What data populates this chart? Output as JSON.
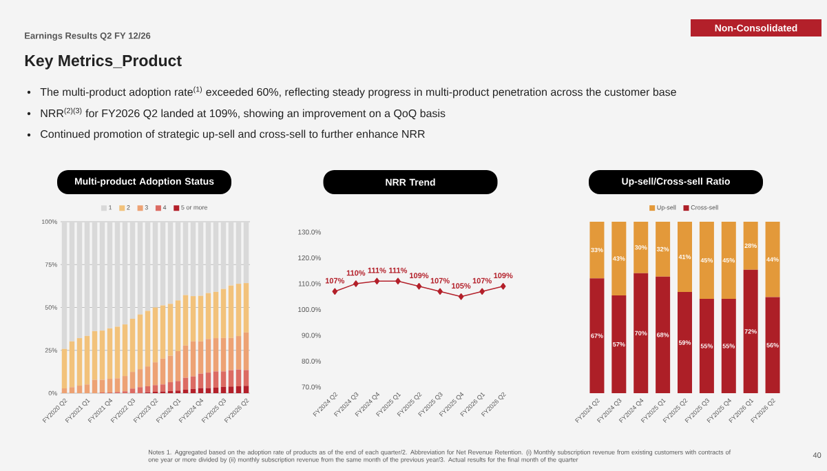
{
  "chart_data": [
    {
      "type": "bar",
      "title": "Multi-product Adoption Status",
      "stacked": true,
      "grid": "y",
      "legend": "top",
      "annotations": [
        "Earnings Results Q2 FY 12/26",
        "Key Metrics_Product",
        "Non-Consolidated",
        "The multi-product adoption rate$^{(1)}$ exceeded 60%, reflecting steady progress in multi-product penetration across the customer base",
        "NRR$^{(2)(3)}$ for FY2026 Q2 landed at 109%, showing an improvement on a QoQ basis",
        "Continued promotion of strategic up-sell and cross-sell to further enhance NRR",
        "Notes 1. Aggregated based on the adoption rate of products as of the end of each quarter/2. Abbreviation for Net Revenue Retention. (i) Monthly subscription revenue from existing customers with contracts of one year or more divided by (ii) monthly subscription revenue from the same month of the previous year/3. Actual results for the final month of the quarter",
        "40"
      ],
      "categories": [
        "FY2020 Q2",
        null,
        null,
        "FY2021 Q1",
        null,
        null,
        "FY2021 Q4",
        null,
        null,
        "FY2022 Q3",
        null,
        null,
        "FY2023 Q2",
        null,
        null,
        "FY2024 Q1",
        null,
        null,
        "FY2024 Q4",
        null,
        null,
        "FY2025 Q3",
        null,
        null,
        "FY2026 Q2"
      ],
      "ylim": [
        0,
        100
      ],
      "yticks": [
        {
          "value": 0,
          "label": "0%"
        },
        {
          "value": 25,
          "label": "25%"
        },
        {
          "value": 50,
          "label": "50%"
        },
        {
          "value": 75,
          "label": "75%"
        },
        {
          "value": 100,
          "label": "100%"
        }
      ],
      "series": [
        {
          "name": "5 or more",
          "color": "#b3202a",
          "values": [
            0,
            0,
            0,
            0,
            0,
            0,
            0,
            0,
            0,
            0,
            0,
            0.5,
            0.8,
            1.0,
            1.2,
            1.5,
            2.0,
            2.5,
            3.0,
            3.0,
            3.2,
            3.7,
            3.9,
            4.0,
            4.3
          ]
        },
        {
          "name": "4",
          "color": "#dc6b63",
          "values": [
            0,
            0,
            0,
            0,
            0,
            0.4,
            0.4,
            0.7,
            1.1,
            2.7,
            3.5,
            3.5,
            3.9,
            4.1,
            5.2,
            5.6,
            7.0,
            7.3,
            8.4,
            9.0,
            9.5,
            9.0,
            9.5,
            9.8,
            9.2
          ]
        },
        {
          "name": "3",
          "color": "#eda274",
          "values": [
            2.8,
            3.5,
            4.4,
            5.1,
            7.8,
            7.4,
            8.0,
            8.0,
            8.9,
            9.7,
            10.5,
            11.6,
            13.3,
            15.1,
            15.4,
            17.4,
            18.8,
            20.4,
            18.8,
            19.6,
            19.4,
            19.5,
            18.8,
            19.5,
            21.9
          ]
        },
        {
          "name": "2",
          "color": "#f2c27b",
          "values": [
            23.0,
            26.7,
            27.7,
            28.3,
            28.4,
            28.7,
            29.4,
            30.1,
            30.1,
            31.0,
            31.9,
            32.4,
            32.0,
            31.0,
            30.3,
            29.6,
            29.4,
            26.4,
            26.6,
            26.8,
            27.0,
            28.6,
            30.6,
            30.5,
            28.8
          ]
        },
        {
          "name": "1",
          "color": "#d9d9d9",
          "values": [
            74.2,
            69.8,
            67.9,
            66.6,
            63.8,
            63.5,
            62.2,
            61.2,
            59.9,
            56.6,
            54.1,
            52.0,
            50.0,
            48.8,
            47.9,
            45.9,
            42.8,
            43.4,
            43.2,
            41.6,
            40.9,
            39.2,
            37.2,
            36.2,
            35.8
          ]
        }
      ]
    },
    {
      "type": "line",
      "title": "NRR Trend",
      "marker": "diamond",
      "line_style": "solid",
      "categories": [
        "FY2024 Q2",
        "FY2024 Q3",
        "FY2024 Q4",
        "FY2025 Q1",
        "FY2025 Q2",
        "FY2025 Q3",
        "FY2025 Q4",
        "FY2026 Q1",
        "FY2026 Q2"
      ],
      "ylim": [
        70,
        130
      ],
      "yticks": [
        {
          "value": 70,
          "label": "70.0%"
        },
        {
          "value": 80,
          "label": "80.0%"
        },
        {
          "value": 90,
          "label": "90.0%"
        },
        {
          "value": 100,
          "label": "100.0%"
        },
        {
          "value": 110,
          "label": "110.0%"
        },
        {
          "value": 120,
          "label": "120.0%"
        },
        {
          "value": 130,
          "label": "130.0%"
        }
      ],
      "series": [
        {
          "color": "#b3202a",
          "values": [
            107,
            110,
            111,
            111,
            109,
            107,
            105,
            107,
            109
          ],
          "value_labels": [
            "107%",
            "110%",
            "111%",
            "111%",
            "109%",
            "107%",
            "105%",
            "107%",
            "109%"
          ]
        }
      ]
    },
    {
      "type": "bar",
      "title": "Up-sell/Cross-sell Ratio",
      "stacked": true,
      "legend": "top",
      "tick_labels": "x",
      "ylim": [
        0,
        100
      ],
      "categories": [
        "FY2024 Q2",
        "FY2024 Q3",
        "FY2024 Q4",
        "FY2025 Q1",
        "FY2025 Q2",
        "FY2025 Q3",
        "FY2025 Q4",
        "FY2026 Q1",
        "FY2026 Q2"
      ],
      "series": [
        {
          "name": "Cross-sell",
          "color": "#ad1f27",
          "values": [
            67,
            57,
            70,
            68,
            59,
            55,
            55,
            72,
            56
          ],
          "value_labels": [
            "67%",
            "57%",
            "70%",
            "68%",
            "59%",
            "55%",
            "55%",
            "72%",
            "56%"
          ]
        },
        {
          "name": "Up-sell",
          "color": "#e3993a",
          "values": [
            33,
            43,
            30,
            32,
            41,
            45,
            45,
            28,
            44
          ],
          "value_labels": [
            "33%",
            "43%",
            "30%",
            "32%",
            "41%",
            "45%",
            "45%",
            "28%",
            "44%"
          ]
        }
      ]
    }
  ]
}
